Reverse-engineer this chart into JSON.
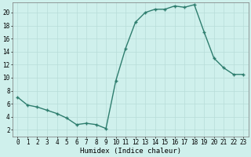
{
  "x": [
    0,
    1,
    2,
    3,
    4,
    5,
    6,
    7,
    8,
    9,
    10,
    11,
    12,
    13,
    14,
    15,
    16,
    17,
    18,
    19,
    20,
    21,
    22,
    23
  ],
  "y": [
    7,
    5.8,
    5.5,
    5.0,
    4.5,
    3.8,
    2.8,
    3.0,
    2.8,
    2.2,
    9.5,
    14.5,
    18.5,
    20.0,
    20.5,
    20.5,
    21.0,
    20.8,
    21.2,
    17.0,
    13.0,
    11.5,
    10.5,
    10.5
  ],
  "line_color": "#2e7d6e",
  "marker": "+",
  "marker_size": 3.5,
  "background_color": "#cff0ec",
  "grid_color": "#b8ddd8",
  "xlabel": "Humidex (Indice chaleur)",
  "xlim": [
    -0.5,
    23.5
  ],
  "ylim": [
    1,
    21.5
  ],
  "yticks": [
    2,
    4,
    6,
    8,
    10,
    12,
    14,
    16,
    18,
    20
  ],
  "xticks": [
    0,
    1,
    2,
    3,
    4,
    5,
    6,
    7,
    8,
    9,
    10,
    11,
    12,
    13,
    14,
    15,
    16,
    17,
    18,
    19,
    20,
    21,
    22,
    23
  ],
  "tick_fontsize": 5.5,
  "xlabel_fontsize": 6.5,
  "line_width": 1.0,
  "marker_edge_width": 1.0
}
